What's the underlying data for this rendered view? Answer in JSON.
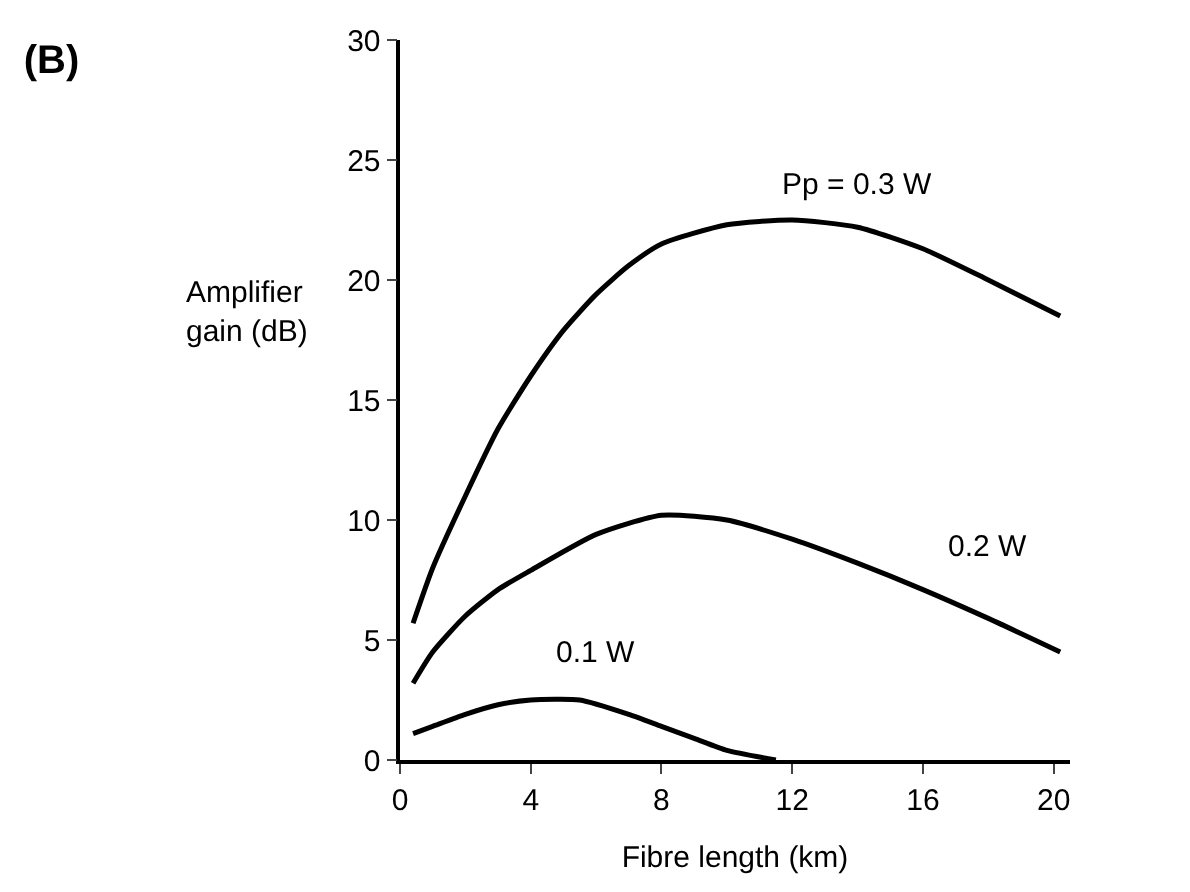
{
  "chart_data": {
    "type": "line",
    "title": "(B)",
    "xlabel": "Fibre length (km)",
    "ylabel": "Amplifier gain (dB)",
    "xlim": [
      0,
      20.5
    ],
    "xticks": [
      0,
      4,
      8,
      12,
      16,
      20
    ],
    "ylim": [
      0,
      30
    ],
    "yticks": [
      0,
      5,
      10,
      15,
      20,
      25,
      30
    ],
    "legend": false,
    "marker": "none",
    "line_style": "solid",
    "series": [
      {
        "name": "Pp = 0.3 W",
        "color": "#000000",
        "x": [
          0.4,
          1,
          2,
          3,
          4,
          5,
          6,
          7,
          8,
          10,
          12,
          14,
          16,
          18,
          20.2
        ],
        "values": [
          5.7,
          8.0,
          11.0,
          13.8,
          16.0,
          17.9,
          19.4,
          20.6,
          21.5,
          22.3,
          22.5,
          22.2,
          21.3,
          20.0,
          18.5
        ]
      },
      {
        "name": "0.2 W",
        "color": "#000000",
        "x": [
          0.4,
          1,
          2,
          3,
          4,
          6,
          8,
          10,
          12,
          14,
          16,
          18,
          20.2
        ],
        "values": [
          3.2,
          4.5,
          6.0,
          7.1,
          7.9,
          9.4,
          10.2,
          10.0,
          9.2,
          8.2,
          7.1,
          5.9,
          4.5
        ]
      },
      {
        "name": "0.1 W",
        "color": "#000000",
        "x": [
          0.4,
          1,
          2,
          3,
          4,
          5.5,
          7,
          8,
          9,
          10,
          11.5
        ],
        "values": [
          1.1,
          1.4,
          1.9,
          2.3,
          2.5,
          2.5,
          1.9,
          1.4,
          0.9,
          0.4,
          0
        ]
      }
    ]
  }
}
